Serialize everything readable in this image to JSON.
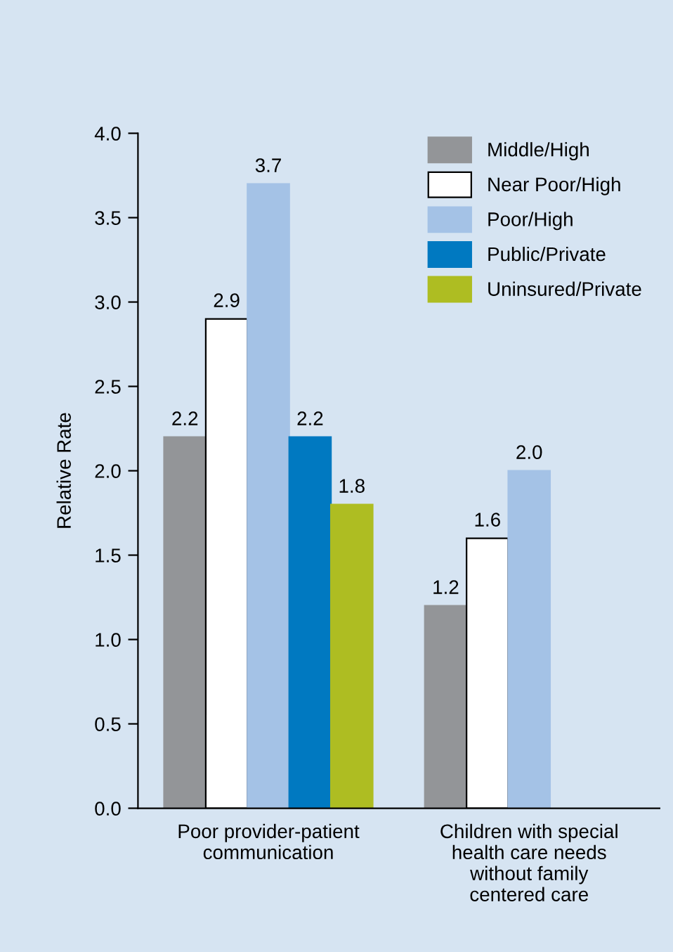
{
  "chart_data": {
    "type": "bar",
    "ylabel": "Relative Rate",
    "categories": [
      "Poor provider-patient\ncommunication",
      "Children with special\nhealth care needs\nwithout family\ncentered care"
    ],
    "series": [
      {
        "name": "Middle/High",
        "color": "#939598",
        "values": [
          2.2,
          1.2
        ],
        "value_labels": [
          "2.2",
          "1.2"
        ]
      },
      {
        "name": "Near Poor/High",
        "color": "#ffffff",
        "values": [
          2.9,
          1.6
        ],
        "value_labels": [
          "2.9",
          "1.6"
        ]
      },
      {
        "name": "Poor/High",
        "color": "#a4c2e6",
        "values": [
          3.7,
          2.0
        ],
        "value_labels": [
          "3.7",
          "2.0"
        ]
      },
      {
        "name": "Public/Private",
        "color": "#0079c1",
        "values": [
          2.2,
          null
        ],
        "value_labels": [
          "2.2",
          null
        ]
      },
      {
        "name": "Uninsured/Private",
        "color": "#aebd22",
        "values": [
          1.8,
          null
        ],
        "value_labels": [
          "1.8",
          null
        ]
      }
    ],
    "ylim": [
      0,
      4.0
    ],
    "yticks": [
      "0.0",
      "0.5",
      "1.0",
      "1.5",
      "2.0",
      "2.5",
      "3.0",
      "3.5",
      "4.0"
    ],
    "legend": "top right",
    "grid": false
  }
}
